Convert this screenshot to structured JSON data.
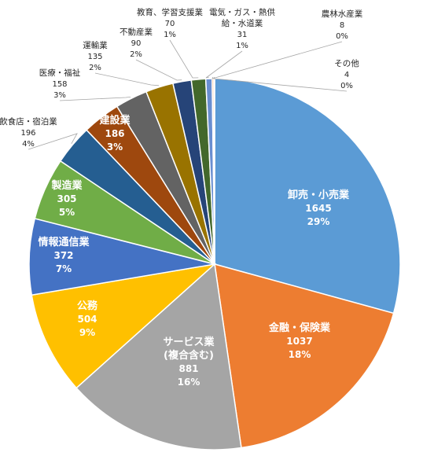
{
  "chart_data": {
    "type": "pie",
    "title": "",
    "slices": [
      {
        "name": "卸売・小売業",
        "value": 1645,
        "pct": "29%",
        "color": "#5B9BD5"
      },
      {
        "name": "金融・保険業",
        "value": 1037,
        "pct": "18%",
        "color": "#ED7D31"
      },
      {
        "name": "サービス業|(複合含む)",
        "value": 881,
        "pct": "16%",
        "color": "#A5A5A5"
      },
      {
        "name": "公務",
        "value": 504,
        "pct": "9%",
        "color": "#FFC000"
      },
      {
        "name": "情報通信業",
        "value": 372,
        "pct": "7%",
        "color": "#4472C4"
      },
      {
        "name": "製造業",
        "value": 305,
        "pct": "5%",
        "color": "#70AD47"
      },
      {
        "name": "飲食店・宿泊業",
        "value": 196,
        "pct": "4%",
        "color": "#255E91"
      },
      {
        "name": "建設業",
        "value": 186,
        "pct": "3%",
        "color": "#9E480E"
      },
      {
        "name": "医療・福祉",
        "value": 158,
        "pct": "3%",
        "color": "#636363"
      },
      {
        "name": "運輸業",
        "value": 135,
        "pct": "2%",
        "color": "#997300"
      },
      {
        "name": "不動産業",
        "value": 90,
        "pct": "2%",
        "color": "#264478"
      },
      {
        "name": "教育、学習支援業",
        "value": 70,
        "pct": "1%",
        "color": "#43682B"
      },
      {
        "name": "電気・ガス・熱供|給・水道業",
        "value": 31,
        "pct": "1%",
        "color": "#698ED0"
      },
      {
        "name": "農林水産業",
        "value": 8,
        "pct": "0%",
        "color": "#F1975A"
      },
      {
        "name": "その他",
        "value": 4,
        "pct": "0%",
        "color": "#B7B7B7"
      }
    ]
  }
}
